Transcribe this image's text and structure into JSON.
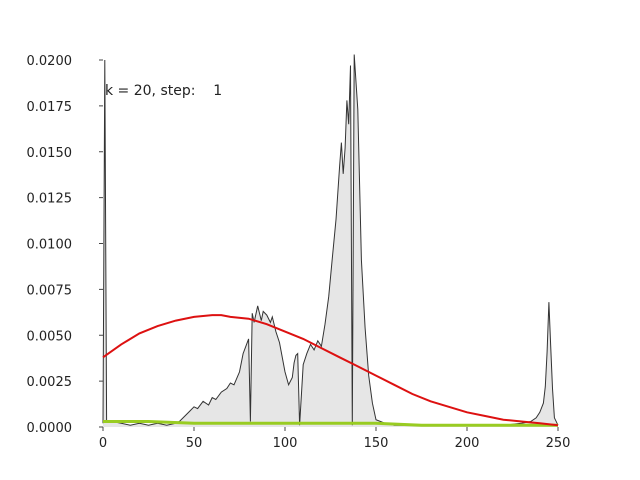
{
  "chart_data": {
    "type": "area",
    "title": "",
    "xlabel": "",
    "ylabel": "",
    "xlim": [
      0,
      250
    ],
    "ylim": [
      0,
      0.02
    ],
    "x_ticks": [
      0,
      50,
      100,
      150,
      200,
      250
    ],
    "x_tick_labels": [
      "0",
      "50",
      "100",
      "150",
      "200",
      "250"
    ],
    "y_ticks": [
      0,
      0.0025,
      0.005,
      0.0075,
      0.01,
      0.0125,
      0.015,
      0.0175,
      0.02
    ],
    "y_tick_labels": [
      "0.0000",
      "0.0025",
      "0.0050",
      "0.0075",
      "0.0100",
      "0.0125",
      "0.0150",
      "0.0175",
      "0.0200"
    ],
    "grid": false,
    "annotation": "k = 20, step:    1",
    "colors": {
      "histogram_fill": "#e6e6e6",
      "histogram_line": "#333333",
      "fit_red": "#dd1111",
      "fit_green": "#99cc22"
    },
    "series": [
      {
        "type": "area",
        "x": [
          0,
          1,
          2,
          5,
          10,
          15,
          20,
          25,
          30,
          35,
          40,
          42,
          45,
          48,
          50,
          52,
          55,
          58,
          60,
          62,
          65,
          68,
          70,
          72,
          75,
          77,
          80,
          81,
          82,
          83,
          85,
          87,
          88,
          90,
          92,
          93,
          95,
          97,
          100,
          102,
          104,
          105,
          106,
          107,
          108,
          110,
          112,
          114,
          116,
          118,
          120,
          122,
          124,
          126,
          128,
          130,
          131,
          132,
          133,
          134,
          135,
          136,
          137,
          138,
          140,
          142,
          144,
          146,
          148,
          150,
          155,
          160,
          170,
          180,
          190,
          200,
          210,
          220,
          230,
          235,
          238,
          240,
          242,
          243,
          244,
          245,
          246,
          247,
          248,
          250
        ],
        "y": [
          0.0002,
          0.02,
          0.0003,
          0.0003,
          0.0002,
          0.0001,
          0.0002,
          0.0001,
          0.0002,
          0.0001,
          0.0002,
          0.0003,
          0.0006,
          0.0009,
          0.0011,
          0.001,
          0.0014,
          0.0012,
          0.0016,
          0.0015,
          0.0019,
          0.0021,
          0.0024,
          0.0023,
          0.003,
          0.004,
          0.0048,
          0.0003,
          0.0062,
          0.0057,
          0.0066,
          0.0058,
          0.0063,
          0.0061,
          0.0057,
          0.006,
          0.0052,
          0.0046,
          0.003,
          0.0023,
          0.0027,
          0.0035,
          0.0039,
          0.004,
          0.0001,
          0.0034,
          0.004,
          0.0045,
          0.0042,
          0.0047,
          0.0044,
          0.0056,
          0.0071,
          0.0092,
          0.0113,
          0.0142,
          0.0155,
          0.0138,
          0.0152,
          0.0178,
          0.0165,
          0.0197,
          0.0001,
          0.0203,
          0.0173,
          0.0091,
          0.0054,
          0.0028,
          0.0013,
          0.0004,
          0.0002,
          0.0001,
          0.0001,
          0.0001,
          0.0001,
          0.0001,
          0.0001,
          0.0001,
          0.0002,
          0.0003,
          0.0005,
          0.0008,
          0.0013,
          0.0022,
          0.0041,
          0.0068,
          0.0044,
          0.0021,
          0.0005,
          0.0001
        ]
      },
      {
        "type": "line",
        "x": [
          0,
          10,
          20,
          30,
          40,
          50,
          60,
          65,
          70,
          80,
          90,
          100,
          110,
          120,
          130,
          140,
          150,
          160,
          170,
          180,
          190,
          200,
          210,
          220,
          230,
          240,
          250
        ],
        "y": [
          0.0038,
          0.0045,
          0.0051,
          0.0055,
          0.0058,
          0.006,
          0.0061,
          0.0061,
          0.006,
          0.0059,
          0.0056,
          0.0052,
          0.0048,
          0.0043,
          0.0038,
          0.0033,
          0.0028,
          0.0023,
          0.0018,
          0.0014,
          0.0011,
          0.0008,
          0.0006,
          0.0004,
          0.0003,
          0.0002,
          0.0001
        ]
      },
      {
        "type": "line",
        "x": [
          0,
          25,
          50,
          75,
          100,
          125,
          150,
          175,
          200,
          225,
          250
        ],
        "y": [
          0.0003,
          0.0003,
          0.0002,
          0.0002,
          0.0002,
          0.0002,
          0.0002,
          0.0001,
          0.0001,
          0.0001,
          0.0001
        ]
      }
    ]
  }
}
